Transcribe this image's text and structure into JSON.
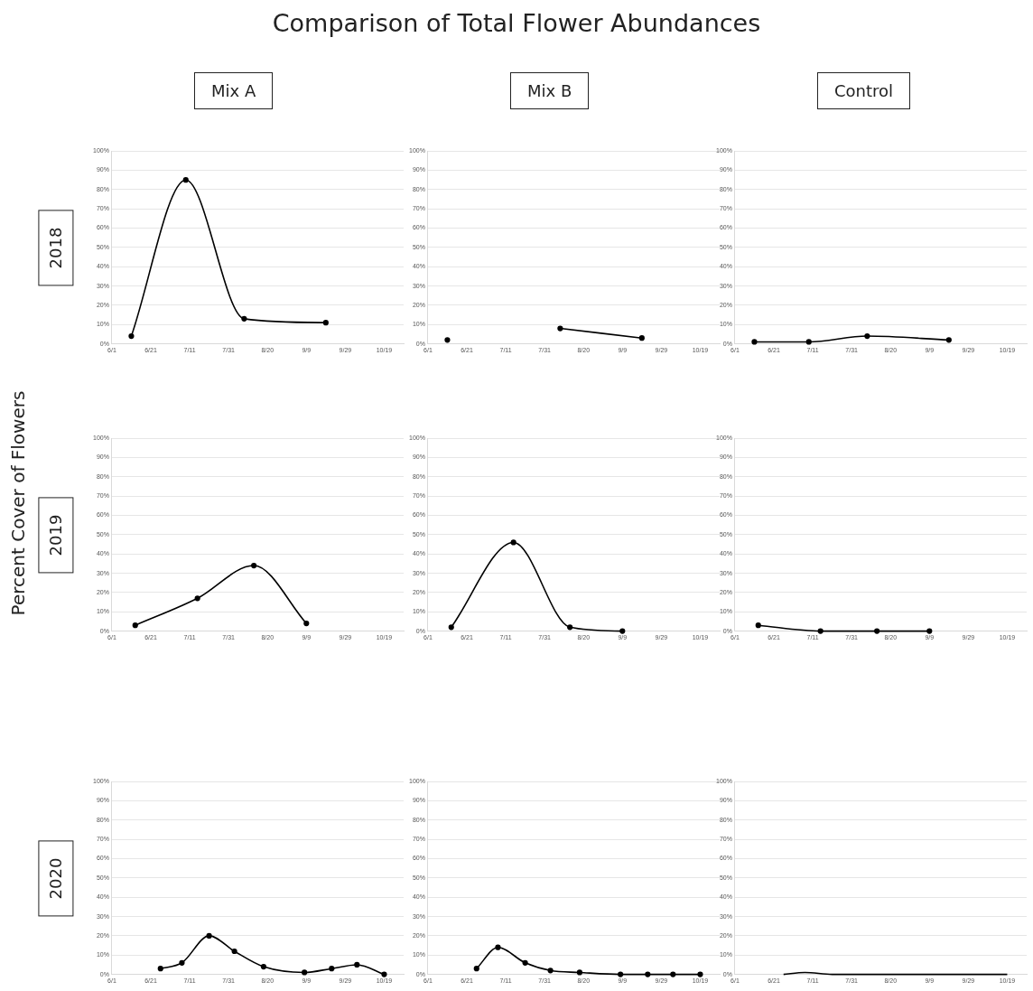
{
  "chart_data": [
    {
      "type": "other",
      "title": "Comparison of Total Flower Abundances",
      "ylabel": "Percent Cover of Flowers"
    },
    {
      "type": "line",
      "title": "Mix A",
      "ylabel": "2018",
      "x": [
        "--06-11",
        "--07-09",
        "--08-08",
        "--09-19"
      ],
      "values": [
        4,
        85,
        13,
        11
      ],
      "color": "#000000",
      "marker": "circle",
      "grid": "y",
      "xlim": [
        "--06-01",
        "--10-29"
      ],
      "xticks": [
        {
          "value": "--06-01",
          "label": "6/1"
        },
        {
          "value": "--06-21",
          "label": "6/21"
        },
        {
          "value": "--07-11",
          "label": "7/11"
        },
        {
          "value": "--07-31",
          "label": "7/31"
        },
        {
          "value": "--08-20",
          "label": "8/20"
        },
        {
          "value": "--09-09",
          "label": "9/9"
        },
        {
          "value": "--09-29",
          "label": "9/29"
        },
        {
          "value": "--10-19",
          "label": "10/19"
        }
      ],
      "ylim": [
        0,
        100
      ],
      "yticks": [
        {
          "value": 0,
          "label": "0%"
        },
        {
          "value": 10,
          "label": "10%"
        },
        {
          "value": 20,
          "label": "20%"
        },
        {
          "value": 30,
          "label": "30%"
        },
        {
          "value": 40,
          "label": "40%"
        },
        {
          "value": 50,
          "label": "50%"
        },
        {
          "value": 60,
          "label": "60%"
        },
        {
          "value": 70,
          "label": "70%"
        },
        {
          "value": 80,
          "label": "80%"
        },
        {
          "value": 90,
          "label": "90%"
        },
        {
          "value": 100,
          "label": "100%"
        }
      ]
    },
    {
      "type": "line",
      "title": "Mix B",
      "x": [
        "--06-11",
        "--07-09",
        "--08-08",
        "--09-19"
      ],
      "values": [
        2,
        null,
        8,
        3
      ],
      "color": "#000000",
      "marker": "circle",
      "grid": "y",
      "xlim": [
        "--06-01",
        "--10-29"
      ],
      "xticks": [
        {
          "value": "--06-01",
          "label": "6/1"
        },
        {
          "value": "--06-21",
          "label": "6/21"
        },
        {
          "value": "--07-11",
          "label": "7/11"
        },
        {
          "value": "--07-31",
          "label": "7/31"
        },
        {
          "value": "--08-20",
          "label": "8/20"
        },
        {
          "value": "--09-09",
          "label": "9/9"
        },
        {
          "value": "--09-29",
          "label": "9/29"
        },
        {
          "value": "--10-19",
          "label": "10/19"
        }
      ],
      "ylim": [
        0,
        100
      ],
      "yticks": [
        {
          "value": 0,
          "label": "0%"
        },
        {
          "value": 10,
          "label": "10%"
        },
        {
          "value": 20,
          "label": "20%"
        },
        {
          "value": 30,
          "label": "30%"
        },
        {
          "value": 40,
          "label": "40%"
        },
        {
          "value": 50,
          "label": "50%"
        },
        {
          "value": 60,
          "label": "60%"
        },
        {
          "value": 70,
          "label": "70%"
        },
        {
          "value": 80,
          "label": "80%"
        },
        {
          "value": 90,
          "label": "90%"
        },
        {
          "value": 100,
          "label": "100%"
        }
      ]
    },
    {
      "type": "line",
      "title": "Control",
      "x": [
        "--06-11",
        "--07-09",
        "--08-08",
        "--09-19"
      ],
      "values": [
        1,
        1,
        4,
        2
      ],
      "color": "#000000",
      "marker": "circle",
      "grid": "y",
      "xlim": [
        "--06-01",
        "--10-29"
      ],
      "xticks": [
        {
          "value": "--06-01",
          "label": "6/1"
        },
        {
          "value": "--06-21",
          "label": "6/21"
        },
        {
          "value": "--07-11",
          "label": "7/11"
        },
        {
          "value": "--07-31",
          "label": "7/31"
        },
        {
          "value": "--08-20",
          "label": "8/20"
        },
        {
          "value": "--09-09",
          "label": "9/9"
        },
        {
          "value": "--09-29",
          "label": "9/29"
        },
        {
          "value": "--10-19",
          "label": "10/19"
        }
      ],
      "ylim": [
        0,
        100
      ],
      "yticks": [
        {
          "value": 0,
          "label": "0%"
        },
        {
          "value": 10,
          "label": "10%"
        },
        {
          "value": 20,
          "label": "20%"
        },
        {
          "value": 30,
          "label": "30%"
        },
        {
          "value": 40,
          "label": "40%"
        },
        {
          "value": 50,
          "label": "50%"
        },
        {
          "value": 60,
          "label": "60%"
        },
        {
          "value": 70,
          "label": "70%"
        },
        {
          "value": 80,
          "label": "80%"
        },
        {
          "value": 90,
          "label": "90%"
        },
        {
          "value": 100,
          "label": "100%"
        }
      ]
    },
    {
      "type": "line",
      "ylabel": "2019",
      "x": [
        "--06-13",
        "--07-15",
        "--08-13",
        "--09-09"
      ],
      "values": [
        3,
        17,
        34,
        4
      ],
      "color": "#000000",
      "marker": "circle",
      "grid": "y",
      "xlim": [
        "--06-01",
        "--10-29"
      ],
      "xticks": [
        {
          "value": "--06-01",
          "label": "6/1"
        },
        {
          "value": "--06-21",
          "label": "6/21"
        },
        {
          "value": "--07-11",
          "label": "7/11"
        },
        {
          "value": "--07-31",
          "label": "7/31"
        },
        {
          "value": "--08-20",
          "label": "8/20"
        },
        {
          "value": "--09-09",
          "label": "9/9"
        },
        {
          "value": "--09-29",
          "label": "9/29"
        },
        {
          "value": "--10-19",
          "label": "10/19"
        }
      ],
      "ylim": [
        0,
        100
      ],
      "yticks": [
        {
          "value": 0,
          "label": "0%"
        },
        {
          "value": 10,
          "label": "10%"
        },
        {
          "value": 20,
          "label": "20%"
        },
        {
          "value": 30,
          "label": "30%"
        },
        {
          "value": 40,
          "label": "40%"
        },
        {
          "value": 50,
          "label": "50%"
        },
        {
          "value": 60,
          "label": "60%"
        },
        {
          "value": 70,
          "label": "70%"
        },
        {
          "value": 80,
          "label": "80%"
        },
        {
          "value": 90,
          "label": "90%"
        },
        {
          "value": 100,
          "label": "100%"
        }
      ]
    },
    {
      "type": "line",
      "x": [
        "--06-13",
        "--07-15",
        "--08-13",
        "--09-09"
      ],
      "values": [
        2,
        46,
        2,
        0
      ],
      "color": "#000000",
      "marker": "circle",
      "grid": "y",
      "xlim": [
        "--06-01",
        "--10-29"
      ],
      "xticks": [
        {
          "value": "--06-01",
          "label": "6/1"
        },
        {
          "value": "--06-21",
          "label": "6/21"
        },
        {
          "value": "--07-11",
          "label": "7/11"
        },
        {
          "value": "--07-31",
          "label": "7/31"
        },
        {
          "value": "--08-20",
          "label": "8/20"
        },
        {
          "value": "--09-09",
          "label": "9/9"
        },
        {
          "value": "--09-29",
          "label": "9/29"
        },
        {
          "value": "--10-19",
          "label": "10/19"
        }
      ],
      "ylim": [
        0,
        100
      ],
      "yticks": [
        {
          "value": 0,
          "label": "0%"
        },
        {
          "value": 10,
          "label": "10%"
        },
        {
          "value": 20,
          "label": "20%"
        },
        {
          "value": 30,
          "label": "30%"
        },
        {
          "value": 40,
          "label": "40%"
        },
        {
          "value": 50,
          "label": "50%"
        },
        {
          "value": 60,
          "label": "60%"
        },
        {
          "value": 70,
          "label": "70%"
        },
        {
          "value": 80,
          "label": "80%"
        },
        {
          "value": 90,
          "label": "90%"
        },
        {
          "value": 100,
          "label": "100%"
        }
      ]
    },
    {
      "type": "line",
      "x": [
        "--06-13",
        "--07-15",
        "--08-13",
        "--09-09"
      ],
      "values": [
        3,
        0,
        0,
        0
      ],
      "color": "#000000",
      "marker": "circle",
      "grid": "y",
      "xlim": [
        "--06-01",
        "--10-29"
      ],
      "xticks": [
        {
          "value": "--06-01",
          "label": "6/1"
        },
        {
          "value": "--06-21",
          "label": "6/21"
        },
        {
          "value": "--07-11",
          "label": "7/11"
        },
        {
          "value": "--07-31",
          "label": "7/31"
        },
        {
          "value": "--08-20",
          "label": "8/20"
        },
        {
          "value": "--09-09",
          "label": "9/9"
        },
        {
          "value": "--09-29",
          "label": "9/29"
        },
        {
          "value": "--10-19",
          "label": "10/19"
        }
      ],
      "ylim": [
        0,
        100
      ],
      "yticks": [
        {
          "value": 0,
          "label": "0%"
        },
        {
          "value": 10,
          "label": "10%"
        },
        {
          "value": 20,
          "label": "20%"
        },
        {
          "value": 30,
          "label": "30%"
        },
        {
          "value": 40,
          "label": "40%"
        },
        {
          "value": 50,
          "label": "50%"
        },
        {
          "value": 60,
          "label": "60%"
        },
        {
          "value": 70,
          "label": "70%"
        },
        {
          "value": 80,
          "label": "80%"
        },
        {
          "value": 90,
          "label": "90%"
        },
        {
          "value": 100,
          "label": "100%"
        }
      ]
    },
    {
      "type": "line",
      "ylabel": "2020",
      "x": [
        "--06-26",
        "--07-07",
        "--07-21",
        "--08-03",
        "--08-18",
        "--09-08",
        "--09-22",
        "--10-05",
        "--10-19"
      ],
      "values": [
        3,
        6,
        20,
        12,
        4,
        1,
        3,
        5,
        0
      ],
      "color": "#000000",
      "marker": "circle",
      "grid": "y",
      "xlim": [
        "--06-01",
        "--10-29"
      ],
      "xticks": [
        {
          "value": "--06-01",
          "label": "6/1"
        },
        {
          "value": "--06-21",
          "label": "6/21"
        },
        {
          "value": "--07-11",
          "label": "7/11"
        },
        {
          "value": "--07-31",
          "label": "7/31"
        },
        {
          "value": "--08-20",
          "label": "8/20"
        },
        {
          "value": "--09-09",
          "label": "9/9"
        },
        {
          "value": "--09-29",
          "label": "9/29"
        },
        {
          "value": "--10-19",
          "label": "10/19"
        }
      ],
      "ylim": [
        0,
        100
      ],
      "yticks": [
        {
          "value": 0,
          "label": "0%"
        },
        {
          "value": 10,
          "label": "10%"
        },
        {
          "value": 20,
          "label": "20%"
        },
        {
          "value": 30,
          "label": "30%"
        },
        {
          "value": 40,
          "label": "40%"
        },
        {
          "value": 50,
          "label": "50%"
        },
        {
          "value": 60,
          "label": "60%"
        },
        {
          "value": 70,
          "label": "70%"
        },
        {
          "value": 80,
          "label": "80%"
        },
        {
          "value": 90,
          "label": "90%"
        },
        {
          "value": 100,
          "label": "100%"
        }
      ]
    },
    {
      "type": "line",
      "x": [
        "--06-26",
        "--07-07",
        "--07-21",
        "--08-03",
        "--08-18",
        "--09-08",
        "--09-22",
        "--10-05",
        "--10-19"
      ],
      "values": [
        3,
        14,
        6,
        2,
        1,
        0,
        0,
        0,
        0
      ],
      "color": "#000000",
      "marker": "circle",
      "grid": "y",
      "xlim": [
        "--06-01",
        "--10-29"
      ],
      "xticks": [
        {
          "value": "--06-01",
          "label": "6/1"
        },
        {
          "value": "--06-21",
          "label": "6/21"
        },
        {
          "value": "--07-11",
          "label": "7/11"
        },
        {
          "value": "--07-31",
          "label": "7/31"
        },
        {
          "value": "--08-20",
          "label": "8/20"
        },
        {
          "value": "--09-09",
          "label": "9/9"
        },
        {
          "value": "--09-29",
          "label": "9/29"
        },
        {
          "value": "--10-19",
          "label": "10/19"
        }
      ],
      "ylim": [
        0,
        100
      ],
      "yticks": [
        {
          "value": 0,
          "label": "0%"
        },
        {
          "value": 10,
          "label": "10%"
        },
        {
          "value": 20,
          "label": "20%"
        },
        {
          "value": 30,
          "label": "30%"
        },
        {
          "value": 40,
          "label": "40%"
        },
        {
          "value": 50,
          "label": "50%"
        },
        {
          "value": 60,
          "label": "60%"
        },
        {
          "value": 70,
          "label": "70%"
        },
        {
          "value": 80,
          "label": "80%"
        },
        {
          "value": 90,
          "label": "90%"
        },
        {
          "value": 100,
          "label": "100%"
        }
      ]
    },
    {
      "type": "line",
      "x": [
        "--06-26",
        "--07-07",
        "--07-21",
        "--08-03",
        "--08-18",
        "--09-08",
        "--09-22",
        "--10-05",
        "--10-19"
      ],
      "values": [
        0,
        1,
        0,
        0,
        0,
        0,
        0,
        0,
        0
      ],
      "color": "#000000",
      "marker": "none",
      "grid": "y",
      "xlim": [
        "--06-01",
        "--10-29"
      ],
      "xticks": [
        {
          "value": "--06-01",
          "label": "6/1"
        },
        {
          "value": "--06-21",
          "label": "6/21"
        },
        {
          "value": "--07-11",
          "label": "7/11"
        },
        {
          "value": "--07-31",
          "label": "7/31"
        },
        {
          "value": "--08-20",
          "label": "8/20"
        },
        {
          "value": "--09-09",
          "label": "9/9"
        },
        {
          "value": "--09-29",
          "label": "9/29"
        },
        {
          "value": "--10-19",
          "label": "10/19"
        }
      ],
      "ylim": [
        0,
        100
      ],
      "yticks": [
        {
          "value": 0,
          "label": "0%"
        },
        {
          "value": 10,
          "label": "10%"
        },
        {
          "value": 20,
          "label": "20%"
        },
        {
          "value": 30,
          "label": "30%"
        },
        {
          "value": 40,
          "label": "40%"
        },
        {
          "value": 50,
          "label": "50%"
        },
        {
          "value": 60,
          "label": "60%"
        },
        {
          "value": 70,
          "label": "70%"
        },
        {
          "value": 80,
          "label": "80%"
        },
        {
          "value": 90,
          "label": "90%"
        },
        {
          "value": 100,
          "label": "100%"
        }
      ]
    }
  ]
}
